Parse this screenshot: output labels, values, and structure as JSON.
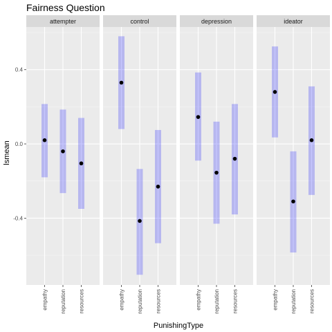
{
  "chart_data": {
    "type": "errorbar",
    "title": "Fairness Question",
    "xlabel": "PunishingType",
    "ylabel": "lsmean",
    "categories": [
      "empathy",
      "reputation",
      "resources"
    ],
    "yticks": [
      -0.4,
      0.0,
      0.4
    ],
    "ytick_labels": [
      "-0.4",
      "0.0",
      "0.4"
    ],
    "ylim": [
      -0.76,
      0.63
    ],
    "grid": true,
    "legend": "none",
    "colors": {
      "bar": "#0000ff",
      "point": "#000000",
      "panel_bg": "#ebebeb",
      "strip_bg": "#d9d9d9",
      "grid_major": "#ffffff"
    },
    "panels": [
      {
        "name": "attempter",
        "points": [
          {
            "x": "empathy",
            "y": 0.02,
            "lower": -0.18,
            "upper": 0.215
          },
          {
            "x": "reputation",
            "y": -0.04,
            "lower": -0.265,
            "upper": 0.185
          },
          {
            "x": "resources",
            "y": -0.105,
            "lower": -0.35,
            "upper": 0.14
          }
        ]
      },
      {
        "name": "control",
        "points": [
          {
            "x": "empathy",
            "y": 0.33,
            "lower": 0.08,
            "upper": 0.58
          },
          {
            "x": "reputation",
            "y": -0.415,
            "lower": -0.705,
            "upper": -0.135
          },
          {
            "x": "resources",
            "y": -0.23,
            "lower": -0.535,
            "upper": 0.075
          }
        ]
      },
      {
        "name": "depression",
        "points": [
          {
            "x": "empathy",
            "y": 0.145,
            "lower": -0.09,
            "upper": 0.385
          },
          {
            "x": "reputation",
            "y": -0.155,
            "lower": -0.43,
            "upper": 0.12
          },
          {
            "x": "resources",
            "y": -0.08,
            "lower": -0.38,
            "upper": 0.215
          }
        ]
      },
      {
        "name": "ideator",
        "points": [
          {
            "x": "empathy",
            "y": 0.28,
            "lower": 0.035,
            "upper": 0.525
          },
          {
            "x": "reputation",
            "y": -0.31,
            "lower": -0.585,
            "upper": -0.04
          },
          {
            "x": "resources",
            "y": 0.02,
            "lower": -0.275,
            "upper": 0.31
          }
        ]
      }
    ]
  }
}
